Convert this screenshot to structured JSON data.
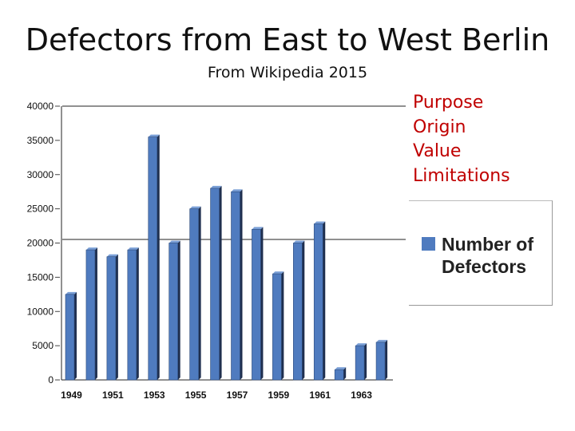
{
  "slide": {
    "title": "Defectors from East to West Berlin",
    "subtitle": "From Wikipedia 2015",
    "notes": [
      "Purpose",
      "Origin",
      "Value",
      "Limitations"
    ]
  },
  "colors": {
    "bar": "#4f7bbf",
    "bar_top": "#7a9fd6",
    "bar_side": "#1f2f4f",
    "notes": "#c00000"
  },
  "chart_data": {
    "type": "bar",
    "title": "",
    "xlabel": "",
    "ylabel": "",
    "ylim": [
      0,
      40000
    ],
    "yticks": [
      0,
      5000,
      10000,
      15000,
      20000,
      25000,
      30000,
      35000,
      40000
    ],
    "categories": [
      "1949",
      "1950",
      "1951",
      "1952",
      "1953",
      "1954",
      "1955",
      "1956",
      "1957",
      "1958",
      "1959",
      "1960",
      "1961",
      "1962",
      "1963",
      "1964"
    ],
    "xtick_labels": [
      "1949",
      "",
      "1951",
      "",
      "1953",
      "",
      "1955",
      "",
      "1957",
      "",
      "1959",
      "",
      "1961",
      "",
      "1963",
      ""
    ],
    "series": [
      {
        "name": "Number of Defectors",
        "values": [
          12500,
          19000,
          18000,
          19000,
          35500,
          20000,
          25000,
          28000,
          27500,
          22000,
          15500,
          20000,
          22800,
          1500,
          5000,
          5500
        ]
      }
    ],
    "legend": "right",
    "grid": false
  }
}
